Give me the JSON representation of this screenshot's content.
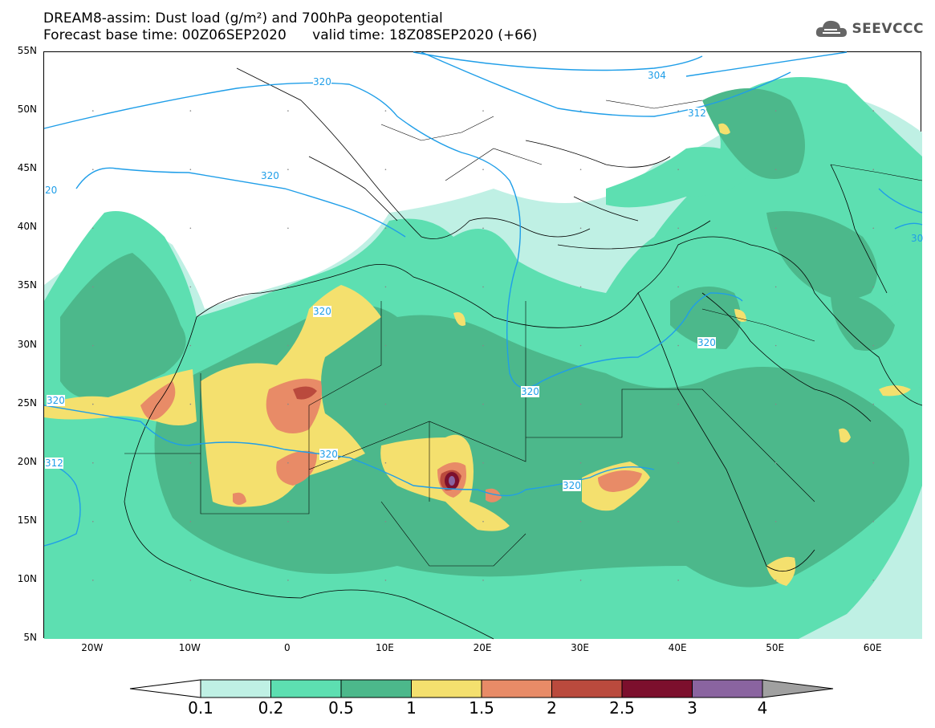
{
  "header": {
    "title_line1": "DREAM8-assim: Dust load (g/m²) and 700hPa geopotential",
    "title_line2": "Forecast base time: 00Z06SEP2020      valid time: 18Z08SEP2020 (+66)",
    "brand": "SEEVCCC",
    "brand_icon": "cloud-logo-icon"
  },
  "map": {
    "lat_labels": [
      "55N",
      "50N",
      "45N",
      "40N",
      "35N",
      "30N",
      "25N",
      "20N",
      "15N",
      "10N",
      "5N"
    ],
    "lon_labels": [
      "20W",
      "10W",
      "0",
      "10E",
      "20E",
      "30E",
      "40E",
      "50E",
      "60E"
    ],
    "lon_range": [
      -25,
      65
    ],
    "lat_range": [
      5,
      55
    ],
    "contour_labels": [
      "320",
      "320",
      "320",
      "320",
      "320",
      "320",
      "320",
      "320",
      "312",
      "304",
      "312",
      "320",
      "20",
      "30"
    ],
    "dust_colors": {
      "0.1": "#bff0e4",
      "0.2": "#5ddfb1",
      "0.5": "#4cb88b",
      "1": "#f4e06e",
      "1.5": "#e88b67",
      "2": "#ba4a3d",
      "2.5": "#7c0f2d",
      "3": "#8a64a0",
      "4": "#a0a0a0"
    },
    "contour_color": "#1f9ee8"
  },
  "colorbar": {
    "labels": [
      "0.1",
      "0.2",
      "0.5",
      "1",
      "1.5",
      "2",
      "2.5",
      "3",
      "4"
    ],
    "colors": [
      "#bff0e4",
      "#5ddfb1",
      "#4cb88b",
      "#f4e06e",
      "#e88b67",
      "#ba4a3d",
      "#7c0f2d",
      "#8a64a0"
    ],
    "extend_low_color": "#ffffff",
    "extend_high_color": "#a0a0a0"
  }
}
